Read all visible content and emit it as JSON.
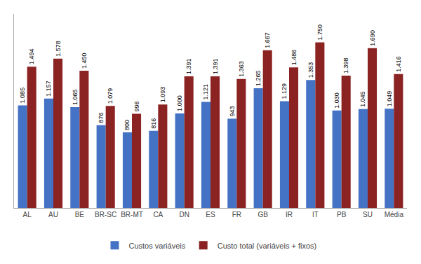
{
  "chart_data": {
    "type": "bar",
    "categories": [
      "AL",
      "AU",
      "BE",
      "BR-SC",
      "BR-MT",
      "CA",
      "DN",
      "ES",
      "FR",
      "GB",
      "IR",
      "IT",
      "PB",
      "SU",
      "Média"
    ],
    "series": [
      {
        "name": "Custos variáveis",
        "color": "#4472C4",
        "values": [
          1.085,
          1.157,
          1.065,
          0.876,
          0.8,
          0.816,
          1.0,
          1.121,
          0.943,
          1.265,
          1.129,
          1.353,
          1.03,
          1.045,
          1.049
        ],
        "value_labels": [
          "1.085",
          "1.157",
          "1.065",
          "876",
          "800",
          "816",
          "1.000",
          "1.121",
          "943",
          "1.265",
          "1.129",
          "1.353",
          "1.030",
          "1.045",
          "1.049"
        ]
      },
      {
        "name": "Custo total (variáveis + fixos)",
        "color": "#8B2323",
        "values": [
          1.494,
          1.578,
          1.45,
          1.079,
          0.996,
          1.093,
          1.391,
          1.391,
          1.363,
          1.667,
          1.486,
          1.75,
          1.398,
          1.69,
          1.416
        ],
        "value_labels": [
          "1.494",
          "1.578",
          "1.450",
          "1.079",
          "996",
          "1.093",
          "1.391",
          "1.391",
          "1.363",
          "1.667",
          "1.486",
          "1.750",
          "1.398",
          "1.690",
          "1.416"
        ]
      }
    ],
    "ylim": [
      0,
      2.05
    ],
    "grid": false,
    "legend": "bottom",
    "data_labels": true,
    "tick_labels": "x"
  }
}
